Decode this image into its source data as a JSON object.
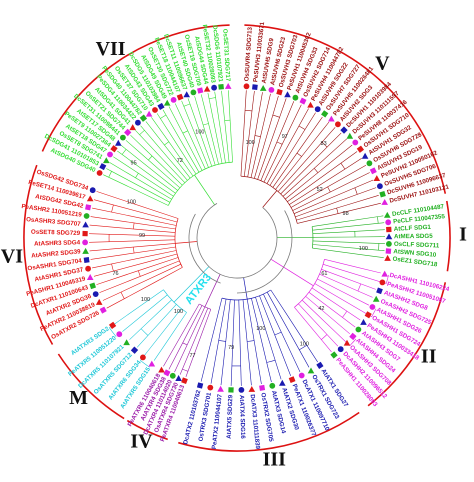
{
  "figure": {
    "center_label": "ATXR3",
    "bootstrap_values": [
      "100",
      "97",
      "83",
      "52",
      "98",
      "100",
      "61",
      "42",
      "100",
      "100",
      "79",
      "77",
      "100",
      "100",
      "76",
      "99",
      "100",
      "95",
      "72",
      "100"
    ]
  },
  "clades": [
    {
      "id": "V",
      "label": "V",
      "color": "#9b1010",
      "leaves": [
        "OsSUVR4 SDG713",
        "PeSUVH3 110033671",
        "AtSUVH5 SDG9",
        "AtSUVH6 SDG23",
        "OsSUVH3 SDG703",
        "PeSUVH1 110045302",
        "AtSUVH4 SDG33",
        "OsSUVH2 SDG714",
        "PeSUVH4 110044782",
        "AtSUVH9 SDG22",
        "OsSUVH7 SDG727",
        "PeSUVH5 110026481",
        "AtSUVH2 SDG3",
        "DcSUVH1 110103984",
        "DcSUVH3 110111597",
        "PeSUVH8 110037416",
        "OsSUVH1 SDG710",
        "AtSUVH1 SDG32",
        "OsSUVH6 SDG728",
        "AtSUVH3 SDG19",
        "PeSUVH2 110050162",
        "OsSUVH5 SDG706",
        "DcSUVH6 110096637",
        "DcSUVH7 110103121"
      ]
    },
    {
      "id": "I",
      "label": "I",
      "color": "#22b022",
      "leaves": [
        "DcCLF 110104487",
        "PeCLF 110047355",
        "AtCLF SDG1",
        "AtMEA SDG5",
        "OsCLF SDG711",
        "AtSWN SDG10",
        "OsEZ1 SDG718"
      ]
    },
    {
      "id": "II",
      "label": "II",
      "color": "#e020e0",
      "leaves": [
        "DcASHH1 110106224",
        "PeASHH2 110051087",
        "AtASHH2 SDG8",
        "OsASHH2 SDG725",
        "AtASHH1 SDG26",
        "OsASHH1 SDG724",
        "PeASHH3 110033418",
        "AtASHH3 SDG7",
        "AtASHH4 SDG24",
        "OsASHH3 SDG708",
        "DcASHH2 110096512",
        "PeASHH1 110028093"
      ]
    },
    {
      "id": "III",
      "label": "III",
      "color": "#1a1ab0",
      "leaves": [
        "AtATX1 SDG27",
        "OsTRX1 SDG723",
        "DcATX1 110097710",
        "PeATX1 110026377",
        "AtATX2 SDG30",
        "AtATX3 SDG14",
        "OsTRX2 SDG705",
        "DcATX3 110111839",
        "AtATX4 SDG16",
        "AtATX5 SDG29",
        "PeATX2 110044107",
        "OsTRX3 SDG701",
        "DcATX2 110103762"
      ]
    },
    {
      "id": "IV",
      "label": "IV",
      "color": "#9a1aa8",
      "leaves": [
        "PeATXR4 110040613",
        "OsATXR4 SDG730",
        "DcATXR4 110114020",
        "AtATXR4 SDG38",
        "PeATXR6 110040618"
      ]
    },
    {
      "id": "M",
      "label": "M",
      "color": "#20c8d8",
      "leaves": [
        "AtATXR5 SDG15",
        "AtATXR6 SDG34",
        "OsATXR5 SDG712",
        "DcATXR5 110107921",
        "PeATXR5 110051220",
        "AtATXR3 SDG2"
      ]
    },
    {
      "id": "VI",
      "label": "VI",
      "color": "#e01818",
      "leaves": [
        "OsATXR2 SDG726",
        "PeATXR2 110038819",
        "AtATXR2 SDG36",
        "DcATXR1 110100643",
        "PeASHR1 110045319",
        "AtASHR1 SDG37",
        "OsASHR1 SDG704",
        "AtASHR2 SDG39",
        "AtASHR3 SDG4",
        "OsSET8 SDG729",
        "OsASHR3 SDG707",
        "PeASHR2 110051219",
        "AtSDG42 SDG42",
        "PeSET14 110039617",
        "OsSDG42 SDG734"
      ]
    },
    {
      "id": "VII",
      "label": "VII",
      "color": "#33dd33",
      "leaves": [
        "AtSDG40 SDG40",
        "DcSDG41 110101853",
        "OsSET8 SDG741",
        "AtSET18 SDG47",
        "PeSET9 110027364",
        "AtSET17 SDG48",
        "DcSET31 110098441",
        "OsSET21 SDG744",
        "AtSDG41 SDG41",
        "PeSDG4 110034422",
        "PeSDG40 110044782",
        "OsSET37 SDG710",
        "AtSDG43 SDG43",
        "DcSDG5 110103984",
        "AtSDG49 SDG49",
        "OsSET30 SDG722",
        "PeSET18 110044107",
        "DcSET11 110096637",
        "AtSET40 SDG40",
        "OsSET19 SDG709",
        "AtSDG44 SDG44",
        "PeSET32 110028093",
        "DcSDG6 110107921",
        "OsSET31 SDG717"
      ]
    }
  ]
}
